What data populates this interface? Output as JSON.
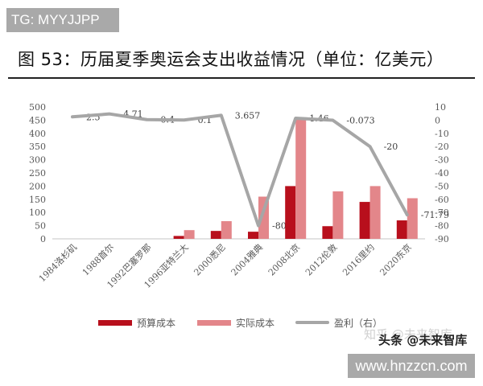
{
  "watermarks": {
    "tg": "TG: MYYJJPP",
    "zhihu": "知乎 @未来智库",
    "toutiao": "头条 @未来智库",
    "site": "www.hnzzcn.com"
  },
  "title": "图 53：历届夏季奥运会支出收益情况（单位：亿美元）",
  "legend": {
    "items": [
      {
        "label": "预算成本",
        "color": "#b80f1c",
        "type": "bar"
      },
      {
        "label": "实际成本",
        "color": "#e3868a",
        "type": "bar"
      },
      {
        "label": "盈利（右）",
        "color": "#a6a6a6",
        "type": "line"
      }
    ]
  },
  "colors": {
    "budget": "#b80f1c",
    "actual": "#e3868a",
    "profit": "#a6a6a6",
    "axis_text": "#595959",
    "baseline": "#d9d9d9"
  },
  "chart_data": {
    "type": "bar",
    "title": "图 53：历届夏季奥运会支出收益情况（单位：亿美元）",
    "xlabel": "",
    "ylabel": "亿美元",
    "categories": [
      "1984洛杉矶",
      "1988首尔",
      "1992巴塞罗那",
      "1996亚特兰大",
      "2000悉尼",
      "2004雅典",
      "2008北京",
      "2012伦敦",
      "2016里约",
      "2020东京"
    ],
    "series": [
      {
        "name": "预算成本",
        "type": "bar",
        "axis": "left",
        "values": [
          0,
          0,
          0,
          11,
          30,
          27,
          200,
          48,
          140,
          70
        ]
      },
      {
        "name": "实际成本",
        "type": "bar",
        "axis": "left",
        "values": [
          0,
          0,
          0,
          33,
          67,
          160,
          455,
          180,
          200,
          154
        ]
      },
      {
        "name": "盈利（右）",
        "type": "line",
        "axis": "right",
        "values": [
          2.5,
          4.71,
          0.4,
          0.1,
          3.657,
          -80,
          1.46,
          -0.073,
          -20,
          -71.79
        ],
        "data_labels": [
          "2.5",
          "4.71",
          "0.4",
          "0.1",
          "3.657",
          "-80",
          "1.46",
          "-0.073",
          "-20",
          "-71.79"
        ]
      }
    ],
    "ylim_left": [
      0,
      500
    ],
    "yticks_left": [
      0,
      50,
      100,
      150,
      200,
      250,
      300,
      350,
      400,
      450,
      500
    ],
    "ylim_right": [
      -90,
      10
    ],
    "yticks_right": [
      10,
      0,
      -10,
      -20,
      -30,
      -40,
      -50,
      -60,
      -70,
      -80,
      -90
    ],
    "grid": false,
    "legend_position": "bottom"
  }
}
